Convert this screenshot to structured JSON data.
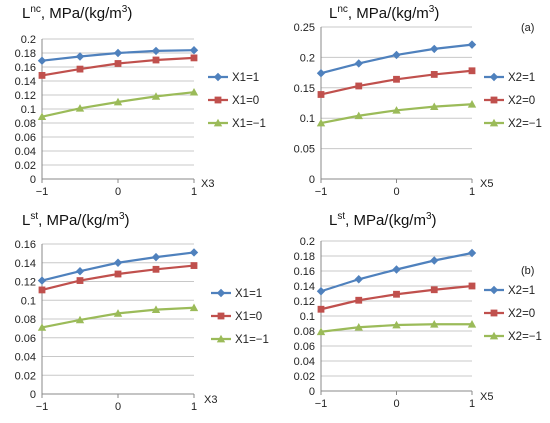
{
  "colors": {
    "grid": "#c8c8c8",
    "axis": "#888888"
  },
  "chart_data": [
    {
      "id": "tl",
      "type": "line",
      "title_main": "L",
      "title_sup": "nc",
      "title_rest": ", MPa/(kg/m",
      "title_sup2": "3",
      "title_end": ")",
      "panel_label": "",
      "xlabel": "X3",
      "xticks": [
        "−1",
        "0",
        "1"
      ],
      "yticks": [
        "0",
        "0.02",
        "0.04",
        "0.06",
        "0.08",
        "0.1",
        "0.12",
        "0.14",
        "0.16",
        "0.18",
        "0.2"
      ],
      "ylim": [
        0,
        0.2
      ],
      "x": [
        -1,
        -0.5,
        0,
        0.5,
        1
      ],
      "series": [
        {
          "name": "X1=1",
          "color": "#4f81bd",
          "marker": "diamond",
          "values": [
            0.169,
            0.175,
            0.18,
            0.183,
            0.184
          ]
        },
        {
          "name": "X1=0",
          "color": "#c0504d",
          "marker": "square",
          "values": [
            0.148,
            0.157,
            0.165,
            0.17,
            0.173
          ]
        },
        {
          "name": "X1=−1",
          "color": "#9bbb59",
          "marker": "triangle",
          "values": [
            0.089,
            0.101,
            0.11,
            0.118,
            0.124
          ]
        }
      ]
    },
    {
      "id": "tr",
      "type": "line",
      "title_main": "L",
      "title_sup": "nc",
      "title_rest": ", MPa/(kg/m",
      "title_sup2": "3",
      "title_end": ")",
      "panel_label": "(a)",
      "xlabel": "X5",
      "xticks": [
        "−1",
        "0",
        "1"
      ],
      "yticks": [
        "0",
        "0.05",
        "0.1",
        "0.15",
        "0.2",
        "0.25"
      ],
      "ylim": [
        0,
        0.25
      ],
      "x": [
        -1,
        -0.5,
        0,
        0.5,
        1
      ],
      "series": [
        {
          "name": "X2=1",
          "color": "#4f81bd",
          "marker": "diamond",
          "values": [
            0.174,
            0.19,
            0.204,
            0.214,
            0.221
          ]
        },
        {
          "name": "X2=0",
          "color": "#c0504d",
          "marker": "square",
          "values": [
            0.139,
            0.153,
            0.164,
            0.172,
            0.178
          ]
        },
        {
          "name": "X2=−1",
          "color": "#9bbb59",
          "marker": "triangle",
          "values": [
            0.092,
            0.104,
            0.113,
            0.119,
            0.123
          ]
        }
      ]
    },
    {
      "id": "bl",
      "type": "line",
      "title_main": "L",
      "title_sup": "st",
      "title_rest": ", MPa/(kg/m",
      "title_sup2": "3",
      "title_end": ")",
      "panel_label": "",
      "xlabel": "X3",
      "xticks": [
        "−1",
        "0",
        "1"
      ],
      "yticks": [
        "0",
        "0.02",
        "0.04",
        "0.06",
        "0.08",
        "0.1",
        "0.12",
        "0.14",
        "0.16"
      ],
      "ylim": [
        0,
        0.16
      ],
      "x": [
        -1,
        -0.5,
        0,
        0.5,
        1
      ],
      "series": [
        {
          "name": "X1=1",
          "color": "#4f81bd",
          "marker": "diamond",
          "values": [
            0.121,
            0.131,
            0.14,
            0.146,
            0.151
          ]
        },
        {
          "name": "X1=0",
          "color": "#c0504d",
          "marker": "square",
          "values": [
            0.111,
            0.121,
            0.128,
            0.133,
            0.137
          ]
        },
        {
          "name": "X1=−1",
          "color": "#9bbb59",
          "marker": "triangle",
          "values": [
            0.071,
            0.079,
            0.086,
            0.09,
            0.092
          ]
        }
      ]
    },
    {
      "id": "br",
      "type": "line",
      "title_main": "L",
      "title_sup": "st",
      "title_rest": ", MPa/(kg/m",
      "title_sup2": "3",
      "title_end": ")",
      "panel_label": "(b)",
      "xlabel": "X5",
      "xticks": [
        "−1",
        "0",
        "1"
      ],
      "yticks": [
        "0",
        "0.02",
        "0.04",
        "0.06",
        "0.08",
        "0.1",
        "0.12",
        "0.14",
        "0.16",
        "0.18",
        "0.2"
      ],
      "ylim": [
        0,
        0.2
      ],
      "x": [
        -1,
        -0.5,
        0,
        0.5,
        1
      ],
      "series": [
        {
          "name": "X2=1",
          "color": "#4f81bd",
          "marker": "diamond",
          "values": [
            0.133,
            0.149,
            0.162,
            0.174,
            0.184
          ]
        },
        {
          "name": "X2=0",
          "color": "#c0504d",
          "marker": "square",
          "values": [
            0.109,
            0.121,
            0.129,
            0.135,
            0.14
          ]
        },
        {
          "name": "X2=−1",
          "color": "#9bbb59",
          "marker": "triangle",
          "values": [
            0.079,
            0.085,
            0.088,
            0.089,
            0.089
          ]
        }
      ]
    }
  ]
}
